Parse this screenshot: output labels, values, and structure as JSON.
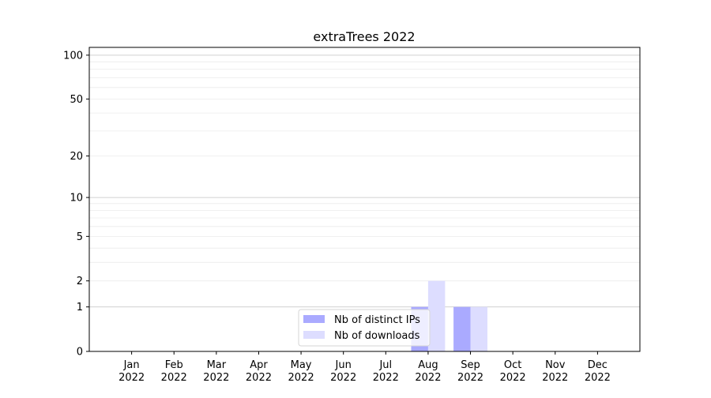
{
  "chart_data": {
    "type": "bar",
    "title": "extraTrees 2022",
    "xlabel": "",
    "ylabel": "",
    "y_scale": "log(1+y)",
    "ylim": [
      0,
      113
    ],
    "xlim": [
      -1,
      12
    ],
    "y_ticks": [
      0,
      1,
      2,
      5,
      10,
      20,
      50,
      100
    ],
    "grid": "horizontal, major at 1/10/100, minor at 2-9, 20-90",
    "legend_position": "lower-center",
    "categories": [
      "Jan\n2022",
      "Feb\n2022",
      "Mar\n2022",
      "Apr\n2022",
      "May\n2022",
      "Jun\n2022",
      "Jul\n2022",
      "Aug\n2022",
      "Sep\n2022",
      "Oct\n2022",
      "Nov\n2022",
      "Dec\n2022"
    ],
    "series": [
      {
        "name": "Nb of distinct IPs",
        "color": "#aaaaff",
        "values": [
          0,
          0,
          0,
          0,
          0,
          0,
          0,
          1,
          1,
          0,
          0,
          0
        ]
      },
      {
        "name": "Nb of downloads",
        "color": "#ddddff",
        "values": [
          0,
          0,
          0,
          0,
          0,
          0,
          0,
          2,
          1,
          0,
          0,
          0
        ]
      }
    ]
  }
}
